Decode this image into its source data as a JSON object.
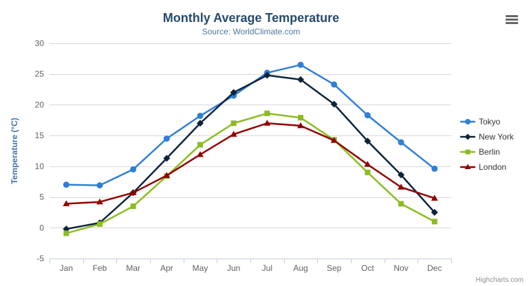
{
  "chart": {
    "credits_label": "Highcharts.com",
    "menu_icon": "hamburger-icon"
  },
  "colors": {
    "title": "#274b6d",
    "subtitle": "#4d759e",
    "axis_title": "#4572a7",
    "tick_label": "#606060",
    "grid_line": "#d8d8d8",
    "axis_line": "#c0d0e0",
    "legend_text": "#333333",
    "credits": "#909090",
    "menu_icon": "#666666"
  },
  "chart_data": {
    "type": "line",
    "title": "Monthly Average Temperature",
    "subtitle": "Source: WorldClimate.com",
    "categories": [
      "Jan",
      "Feb",
      "Mar",
      "Apr",
      "May",
      "Jun",
      "Jul",
      "Aug",
      "Sep",
      "Oct",
      "Nov",
      "Dec"
    ],
    "series": [
      {
        "name": "Tokyo",
        "color": "#2f7ed8",
        "marker": "circle",
        "values": [
          7.0,
          6.9,
          9.5,
          14.5,
          18.2,
          21.5,
          25.2,
          26.5,
          23.3,
          18.3,
          13.9,
          9.6
        ]
      },
      {
        "name": "New York",
        "color": "#0d233a",
        "marker": "diamond",
        "values": [
          -0.2,
          0.8,
          5.7,
          11.3,
          17.0,
          22.0,
          24.8,
          24.1,
          20.1,
          14.1,
          8.6,
          2.5
        ]
      },
      {
        "name": "Berlin",
        "color": "#8bbc21",
        "marker": "square",
        "values": [
          -0.9,
          0.6,
          3.5,
          8.4,
          13.5,
          17.0,
          18.6,
          17.9,
          14.3,
          9.0,
          3.9,
          1.0
        ]
      },
      {
        "name": "London",
        "color": "#910000",
        "marker": "triangle",
        "values": [
          3.9,
          4.2,
          5.7,
          8.5,
          11.9,
          15.2,
          17.0,
          16.6,
          14.2,
          10.3,
          6.6,
          4.8
        ]
      }
    ],
    "xlabel": "",
    "ylabel": "Temperature (°C)",
    "ylim": [
      -5,
      30
    ],
    "ytick_interval": 5,
    "grid": true,
    "legend_position": "right"
  }
}
